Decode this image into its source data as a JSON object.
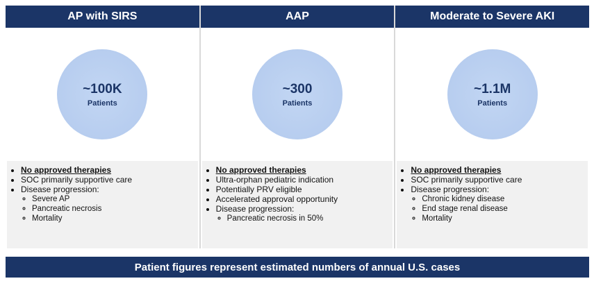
{
  "columns": [
    {
      "title": "AP with SIRS",
      "figure": "~100K",
      "unit": "Patients",
      "bullets": [
        {
          "text": "No approved therapies",
          "sub": []
        },
        {
          "text": "SOC primarily supportive care",
          "sub": []
        },
        {
          "text": "Disease progression:",
          "sub": [
            "Severe AP",
            "Pancreatic necrosis",
            "Mortality"
          ]
        }
      ]
    },
    {
      "title": "AAP",
      "figure": "~300",
      "unit": "Patients",
      "bullets": [
        {
          "text": "No approved therapies",
          "sub": []
        },
        {
          "text": "Ultra-orphan pediatric indication",
          "sub": []
        },
        {
          "text": "Potentially PRV eligible",
          "sub": []
        },
        {
          "text": "Accelerated approval opportunity",
          "sub": []
        },
        {
          "text": "Disease progression:",
          "sub": [
            "Pancreatic necrosis in 50%"
          ]
        }
      ]
    },
    {
      "title": "Moderate to Severe AKI",
      "figure": "~1.1M",
      "unit": "Patients",
      "bullets": [
        {
          "text": "No approved therapies",
          "sub": []
        },
        {
          "text": "SOC primarily supportive care",
          "sub": []
        },
        {
          "text": "Disease progression:",
          "sub": [
            "Chronic kidney disease",
            "End stage renal disease",
            "Mortality"
          ]
        }
      ]
    }
  ],
  "footer": "Patient figures represent estimated numbers of annual U.S. cases"
}
